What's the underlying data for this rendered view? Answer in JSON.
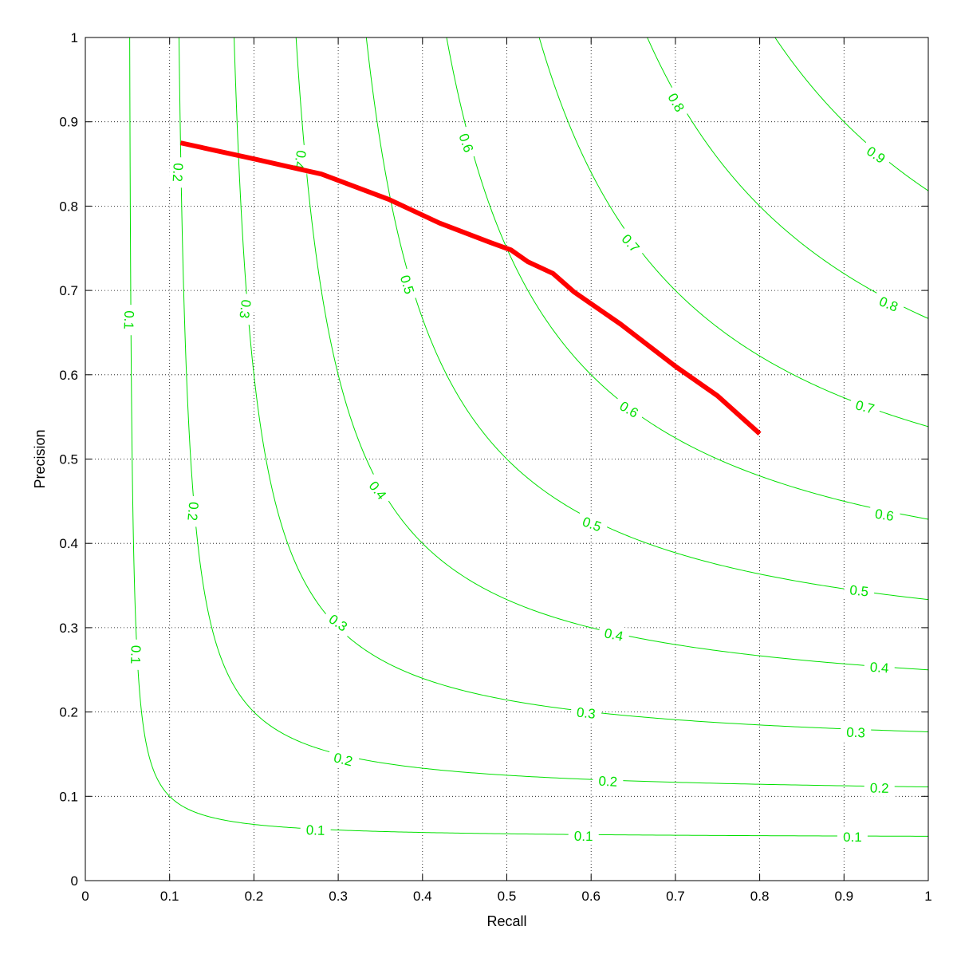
{
  "chart_data": {
    "type": "line",
    "title": "",
    "xlabel": "Recall",
    "ylabel": "Precision",
    "xlim": [
      0,
      1
    ],
    "ylim": [
      0,
      1
    ],
    "grid": true,
    "grid_style": "dotted",
    "xticks": [
      "0",
      "0.1",
      "0.2",
      "0.3",
      "0.4",
      "0.5",
      "0.6",
      "0.7",
      "0.8",
      "0.9",
      "1"
    ],
    "yticks": [
      "0",
      "0.1",
      "0.2",
      "0.3",
      "0.4",
      "0.5",
      "0.6",
      "0.7",
      "0.8",
      "0.9",
      "1"
    ],
    "series": [
      {
        "color": "#ff0000",
        "x": [
          0.113,
          0.2,
          0.28,
          0.36,
          0.42,
          0.48,
          0.505,
          0.525,
          0.555,
          0.58,
          0.635,
          0.7,
          0.75,
          0.8
        ],
        "y": [
          0.875,
          0.856,
          0.838,
          0.808,
          0.78,
          0.757,
          0.748,
          0.734,
          0.72,
          0.698,
          0.66,
          0.61,
          0.575,
          0.53
        ]
      }
    ],
    "contours": {
      "color": "#00e000",
      "function": "F-measure",
      "levels": [
        0.1,
        0.2,
        0.3,
        0.4,
        0.5,
        0.6,
        0.7,
        0.8,
        0.9
      ],
      "labels": [
        {
          "text": "0.1",
          "x": 0.052,
          "y": 0.665,
          "rot": 92
        },
        {
          "text": "0.1",
          "x": 0.06,
          "y": 0.268,
          "rot": 92
        },
        {
          "text": "0.1",
          "x": 0.273,
          "y": 0.06,
          "rot": 2
        },
        {
          "text": "0.1",
          "x": 0.591,
          "y": 0.053,
          "rot": 1
        },
        {
          "text": "0.1",
          "x": 0.91,
          "y": 0.052,
          "rot": 0
        },
        {
          "text": "0.2",
          "x": 0.11,
          "y": 0.84,
          "rot": 93
        },
        {
          "text": "0.2",
          "x": 0.128,
          "y": 0.438,
          "rot": 95
        },
        {
          "text": "0.2",
          "x": 0.306,
          "y": 0.144,
          "rot": 14
        },
        {
          "text": "0.2",
          "x": 0.62,
          "y": 0.118,
          "rot": 3
        },
        {
          "text": "0.2",
          "x": 0.942,
          "y": 0.11,
          "rot": 1
        },
        {
          "text": "0.3",
          "x": 0.19,
          "y": 0.678,
          "rot": 97
        },
        {
          "text": "0.3",
          "x": 0.3,
          "y": 0.306,
          "rot": 35
        },
        {
          "text": "0.3",
          "x": 0.594,
          "y": 0.199,
          "rot": 6
        },
        {
          "text": "0.3",
          "x": 0.914,
          "y": 0.176,
          "rot": 2
        },
        {
          "text": "0.4",
          "x": 0.255,
          "y": 0.855,
          "rot": 100
        },
        {
          "text": "0.4",
          "x": 0.347,
          "y": 0.463,
          "rot": 52
        },
        {
          "text": "0.4",
          "x": 0.627,
          "y": 0.292,
          "rot": 12
        },
        {
          "text": "0.4",
          "x": 0.942,
          "y": 0.253,
          "rot": 4
        },
        {
          "text": "0.5",
          "x": 0.382,
          "y": 0.707,
          "rot": 73
        },
        {
          "text": "0.5",
          "x": 0.601,
          "y": 0.423,
          "rot": 20
        },
        {
          "text": "0.5",
          "x": 0.918,
          "y": 0.344,
          "rot": 6
        },
        {
          "text": "0.6",
          "x": 0.452,
          "y": 0.875,
          "rot": 71
        },
        {
          "text": "0.6",
          "x": 0.645,
          "y": 0.559,
          "rot": 30
        },
        {
          "text": "0.6",
          "x": 0.948,
          "y": 0.434,
          "rot": 9
        },
        {
          "text": "0.7",
          "x": 0.647,
          "y": 0.756,
          "rot": 48
        },
        {
          "text": "0.7",
          "x": 0.925,
          "y": 0.562,
          "rot": 15
        },
        {
          "text": "0.8",
          "x": 0.701,
          "y": 0.923,
          "rot": 60
        },
        {
          "text": "0.8",
          "x": 0.953,
          "y": 0.684,
          "rot": 22
        },
        {
          "text": "0.9",
          "x": 0.938,
          "y": 0.861,
          "rot": 34
        }
      ]
    }
  }
}
